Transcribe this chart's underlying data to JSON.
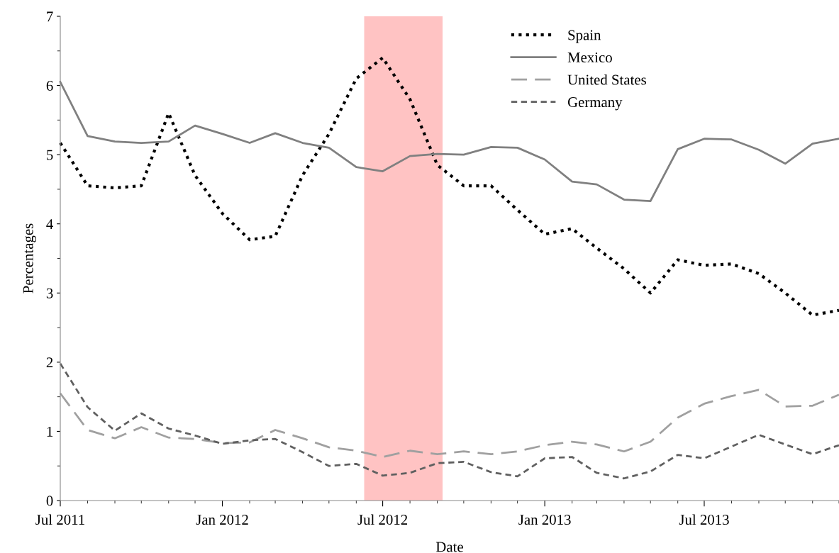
{
  "chart_data": {
    "type": "line",
    "xlabel": "Date",
    "ylabel": "Percentages",
    "x": [
      "2011-07",
      "2011-08",
      "2011-09",
      "2011-10",
      "2011-11",
      "2011-12",
      "2012-01",
      "2012-02",
      "2012-03",
      "2012-04",
      "2012-05",
      "2012-06",
      "2012-07",
      "2012-08",
      "2012-09",
      "2012-10",
      "2012-11",
      "2012-12",
      "2013-01",
      "2013-02",
      "2013-03",
      "2013-04",
      "2013-05",
      "2013-06",
      "2013-07",
      "2013-08",
      "2013-09",
      "2013-10",
      "2013-11",
      "2013-12"
    ],
    "series": [
      {
        "name": "Spain",
        "color": "#000000",
        "line_style": "dotted",
        "values": [
          5.17,
          4.55,
          4.52,
          4.55,
          5.6,
          4.7,
          4.15,
          3.77,
          3.82,
          4.7,
          5.3,
          6.1,
          6.4,
          5.8,
          4.85,
          4.55,
          4.55,
          4.2,
          3.85,
          3.93,
          3.65,
          3.35,
          3.0,
          3.48,
          3.4,
          3.42,
          3.28,
          3.0,
          2.68,
          2.75
        ]
      },
      {
        "name": "Mexico",
        "color": "#808080",
        "line_style": "solid",
        "values": [
          6.05,
          5.27,
          5.19,
          5.17,
          5.19,
          5.42,
          5.3,
          5.17,
          5.31,
          5.17,
          5.1,
          4.82,
          4.76,
          4.98,
          5.01,
          5.0,
          5.11,
          5.1,
          4.93,
          4.61,
          4.57,
          4.35,
          4.33,
          5.08,
          5.23,
          5.22,
          5.07,
          4.87,
          5.16,
          5.23
        ]
      },
      {
        "name": "United States",
        "color": "#a0a0a0",
        "line_style": "dashed",
        "values": [
          1.55,
          1.02,
          0.9,
          1.06,
          0.91,
          0.89,
          0.83,
          0.84,
          1.02,
          0.9,
          0.77,
          0.72,
          0.63,
          0.72,
          0.67,
          0.71,
          0.67,
          0.71,
          0.8,
          0.85,
          0.81,
          0.71,
          0.85,
          1.2,
          1.4,
          1.51,
          1.6,
          1.36,
          1.37,
          1.53
        ]
      },
      {
        "name": "Germany",
        "color": "#606060",
        "line_style": "short_dashed",
        "values": [
          1.98,
          1.35,
          1.01,
          1.26,
          1.04,
          0.94,
          0.82,
          0.87,
          0.89,
          0.7,
          0.5,
          0.53,
          0.36,
          0.4,
          0.54,
          0.56,
          0.41,
          0.35,
          0.61,
          0.63,
          0.4,
          0.32,
          0.42,
          0.66,
          0.61,
          0.78,
          0.95,
          0.81,
          0.67,
          0.8
        ]
      }
    ],
    "xlim": [
      "2011-07",
      "2013-12"
    ],
    "xticks": [
      {
        "value": "2011-07",
        "label": "Jul 2011"
      },
      {
        "value": "2012-01",
        "label": "Jan 2012"
      },
      {
        "value": "2012-07",
        "label": "Jul 2012"
      },
      {
        "value": "2013-01",
        "label": "Jan 2013"
      },
      {
        "value": "2013-07",
        "label": "Jul 2013"
      }
    ],
    "ylim": [
      0,
      7
    ],
    "yticks": [
      0,
      1,
      2,
      3,
      4,
      5,
      6,
      7
    ],
    "bands": [
      {
        "axis": "x",
        "from": "2012-06-10",
        "to": "2012-09-07",
        "color": "#ffaaaa"
      }
    ],
    "legend": "top right",
    "grid": false
  }
}
